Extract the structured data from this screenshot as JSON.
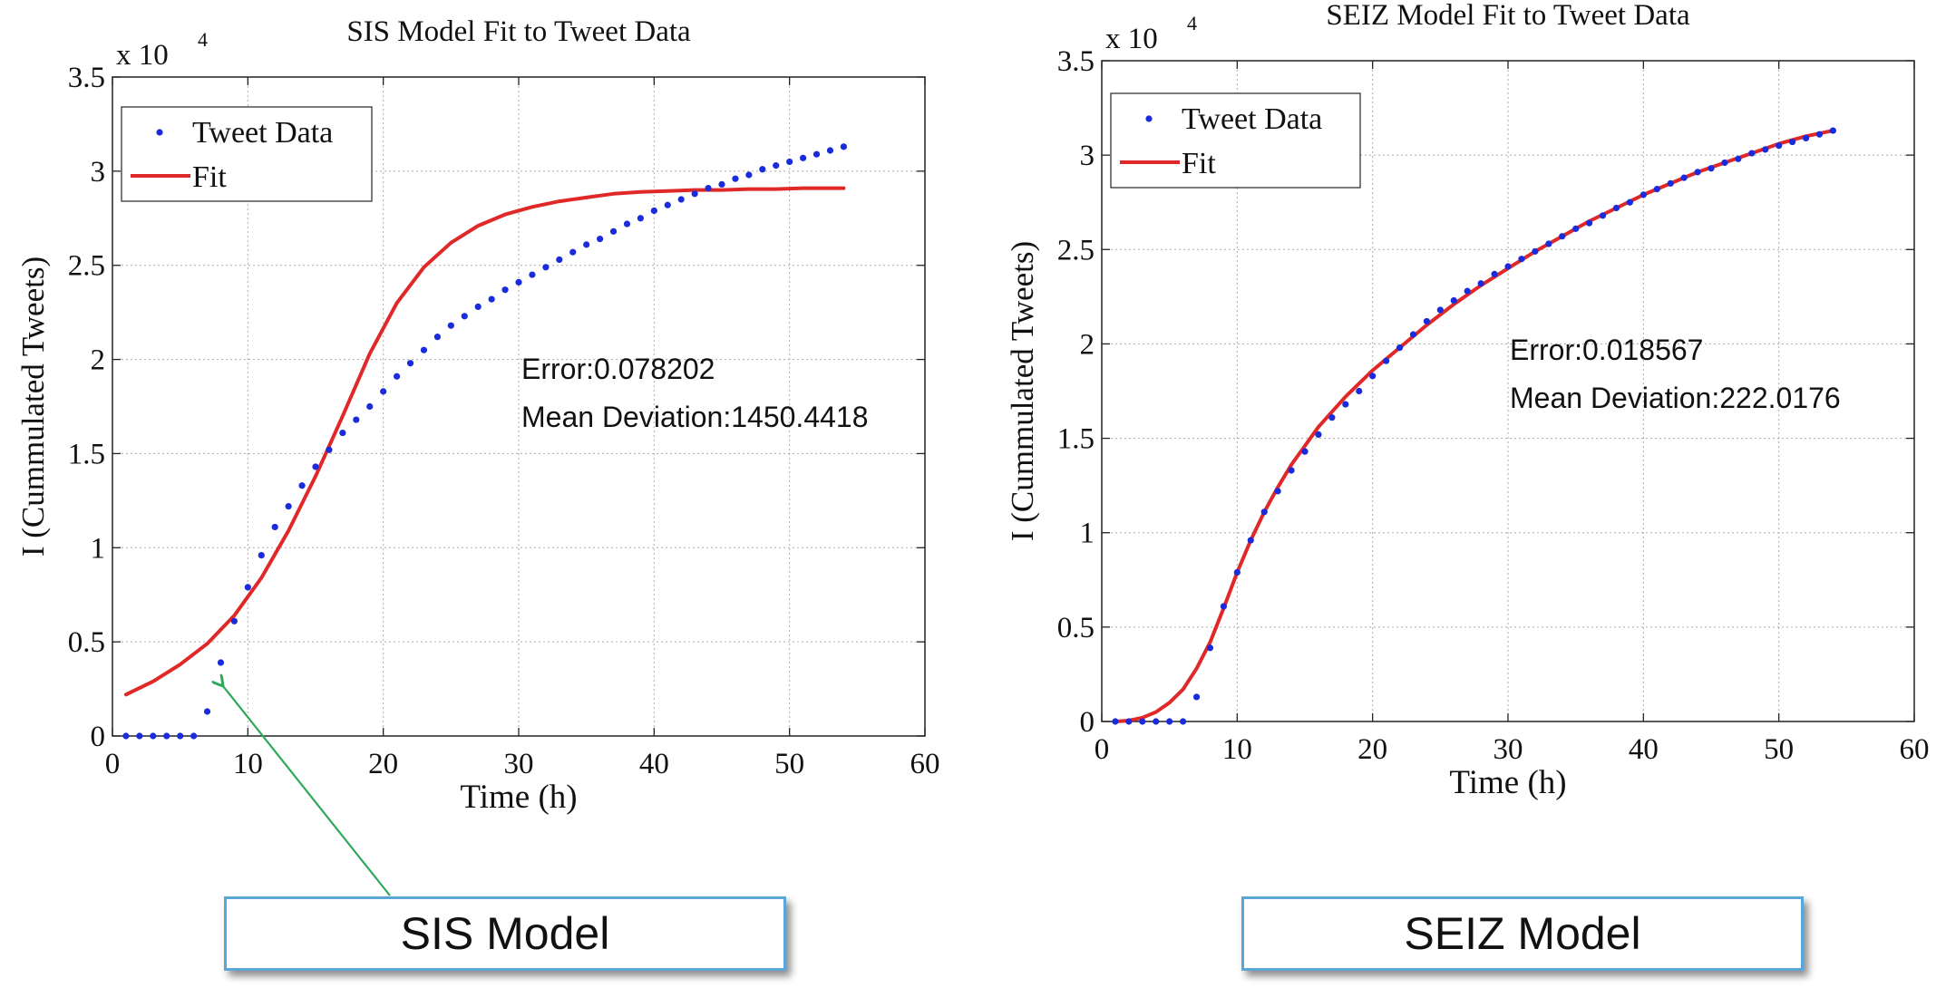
{
  "chart_data": [
    {
      "type": "scatter+line",
      "title": "SIS Model Fit to Tweet Data",
      "xlabel": "Time (h)",
      "ylabel": "I (Cummulated Tweets)",
      "y_exponent_label": "x 10",
      "y_exponent": "4",
      "xlim": [
        0,
        60
      ],
      "ylim": [
        0,
        3.5
      ],
      "xticks": [
        0,
        10,
        20,
        30,
        40,
        50,
        60
      ],
      "yticks": [
        0,
        0.5,
        1,
        1.5,
        2,
        2.5,
        3,
        3.5
      ],
      "ytick_labels": [
        "0",
        "0.5",
        "1",
        "1.5",
        "2",
        "2.5",
        "3",
        "3.5"
      ],
      "grid": true,
      "legend": {
        "placement": "top-left",
        "entries": [
          "Tweet Data",
          "Fit"
        ]
      },
      "annotations": [
        "Error:0.078202",
        "Mean Deviation:1450.4418"
      ],
      "series": [
        {
          "name": "Tweet Data",
          "style": "points",
          "color": "#1a2bdc",
          "x": [
            1,
            2,
            3,
            4,
            5,
            6,
            7,
            8,
            9,
            10,
            11,
            12,
            13,
            14,
            15,
            16,
            17,
            18,
            19,
            20,
            21,
            22,
            23,
            24,
            25,
            26,
            27,
            28,
            29,
            30,
            31,
            32,
            33,
            34,
            35,
            36,
            37,
            38,
            39,
            40,
            41,
            42,
            43,
            44,
            45,
            46,
            47,
            48,
            49,
            50,
            51,
            52,
            53,
            54
          ],
          "values": [
            0,
            0,
            0,
            0,
            0,
            0,
            0.13,
            0.39,
            0.61,
            0.79,
            0.96,
            1.11,
            1.22,
            1.33,
            1.43,
            1.52,
            1.61,
            1.68,
            1.75,
            1.83,
            1.91,
            1.98,
            2.05,
            2.12,
            2.18,
            2.23,
            2.28,
            2.32,
            2.37,
            2.41,
            2.45,
            2.49,
            2.53,
            2.57,
            2.61,
            2.64,
            2.68,
            2.72,
            2.75,
            2.79,
            2.82,
            2.85,
            2.88,
            2.91,
            2.93,
            2.96,
            2.98,
            3.01,
            3.03,
            3.05,
            3.07,
            3.09,
            3.11,
            3.13
          ]
        },
        {
          "name": "Fit",
          "style": "line",
          "color": "#e02828",
          "x": [
            1,
            3,
            5,
            7,
            9,
            11,
            13,
            15,
            17,
            19,
            21,
            23,
            25,
            27,
            29,
            31,
            33,
            35,
            37,
            39,
            41,
            43,
            45,
            47,
            49,
            51,
            54
          ],
          "values": [
            0.22,
            0.29,
            0.38,
            0.49,
            0.64,
            0.84,
            1.09,
            1.38,
            1.7,
            2.03,
            2.3,
            2.49,
            2.62,
            2.71,
            2.77,
            2.81,
            2.84,
            2.86,
            2.88,
            2.89,
            2.895,
            2.9,
            2.9,
            2.905,
            2.905,
            2.91,
            2.91
          ]
        }
      ]
    },
    {
      "type": "scatter+line",
      "title": "SEIZ Model Fit to Tweet Data",
      "xlabel": "Time (h)",
      "ylabel": "I (Cummulated Tweets)",
      "y_exponent_label": "x 10",
      "y_exponent": "4",
      "xlim": [
        0,
        60
      ],
      "ylim": [
        0,
        3.5
      ],
      "xticks": [
        0,
        10,
        20,
        30,
        40,
        50,
        60
      ],
      "yticks": [
        0,
        0.5,
        1,
        1.5,
        2,
        2.5,
        3,
        3.5
      ],
      "ytick_labels": [
        "0",
        "0.5",
        "1",
        "1.5",
        "2",
        "2.5",
        "3",
        "3.5"
      ],
      "grid": true,
      "legend": {
        "placement": "top-left",
        "entries": [
          "Tweet Data",
          "Fit"
        ]
      },
      "annotations": [
        "Error:0.018567",
        "Mean Deviation:222.0176"
      ],
      "series": [
        {
          "name": "Tweet Data",
          "style": "points",
          "color": "#1a2bdc",
          "x": [
            1,
            2,
            3,
            4,
            5,
            6,
            7,
            8,
            9,
            10,
            11,
            12,
            13,
            14,
            15,
            16,
            17,
            18,
            19,
            20,
            21,
            22,
            23,
            24,
            25,
            26,
            27,
            28,
            29,
            30,
            31,
            32,
            33,
            34,
            35,
            36,
            37,
            38,
            39,
            40,
            41,
            42,
            43,
            44,
            45,
            46,
            47,
            48,
            49,
            50,
            51,
            52,
            53,
            54
          ],
          "values": [
            0,
            0,
            0,
            0,
            0,
            0,
            0.13,
            0.39,
            0.61,
            0.79,
            0.96,
            1.11,
            1.22,
            1.33,
            1.43,
            1.52,
            1.61,
            1.68,
            1.75,
            1.83,
            1.91,
            1.98,
            2.05,
            2.12,
            2.18,
            2.23,
            2.28,
            2.32,
            2.37,
            2.41,
            2.45,
            2.49,
            2.53,
            2.57,
            2.61,
            2.64,
            2.68,
            2.72,
            2.75,
            2.79,
            2.82,
            2.85,
            2.88,
            2.91,
            2.93,
            2.96,
            2.98,
            3.01,
            3.03,
            3.05,
            3.07,
            3.09,
            3.11,
            3.13
          ]
        },
        {
          "name": "Fit",
          "style": "line",
          "color": "#e02828",
          "x": [
            1,
            2,
            3,
            4,
            5,
            6,
            7,
            8,
            9,
            10,
            11,
            12,
            13,
            14,
            15,
            16,
            18,
            20,
            22,
            24,
            26,
            28,
            30,
            32,
            34,
            36,
            38,
            40,
            42,
            44,
            46,
            48,
            50,
            52,
            54
          ],
          "values": [
            0,
            0.005,
            0.02,
            0.05,
            0.1,
            0.17,
            0.28,
            0.42,
            0.6,
            0.79,
            0.96,
            1.11,
            1.24,
            1.36,
            1.46,
            1.56,
            1.72,
            1.86,
            1.98,
            2.1,
            2.21,
            2.31,
            2.4,
            2.49,
            2.57,
            2.65,
            2.72,
            2.79,
            2.85,
            2.91,
            2.96,
            3.01,
            3.06,
            3.1,
            3.13
          ]
        }
      ]
    }
  ],
  "labels": {
    "sis": "SIS Model",
    "seiz": "SEIZ Model"
  },
  "colors": {
    "arrow": "#2ea85a",
    "box_border": "#5aa6d8"
  }
}
